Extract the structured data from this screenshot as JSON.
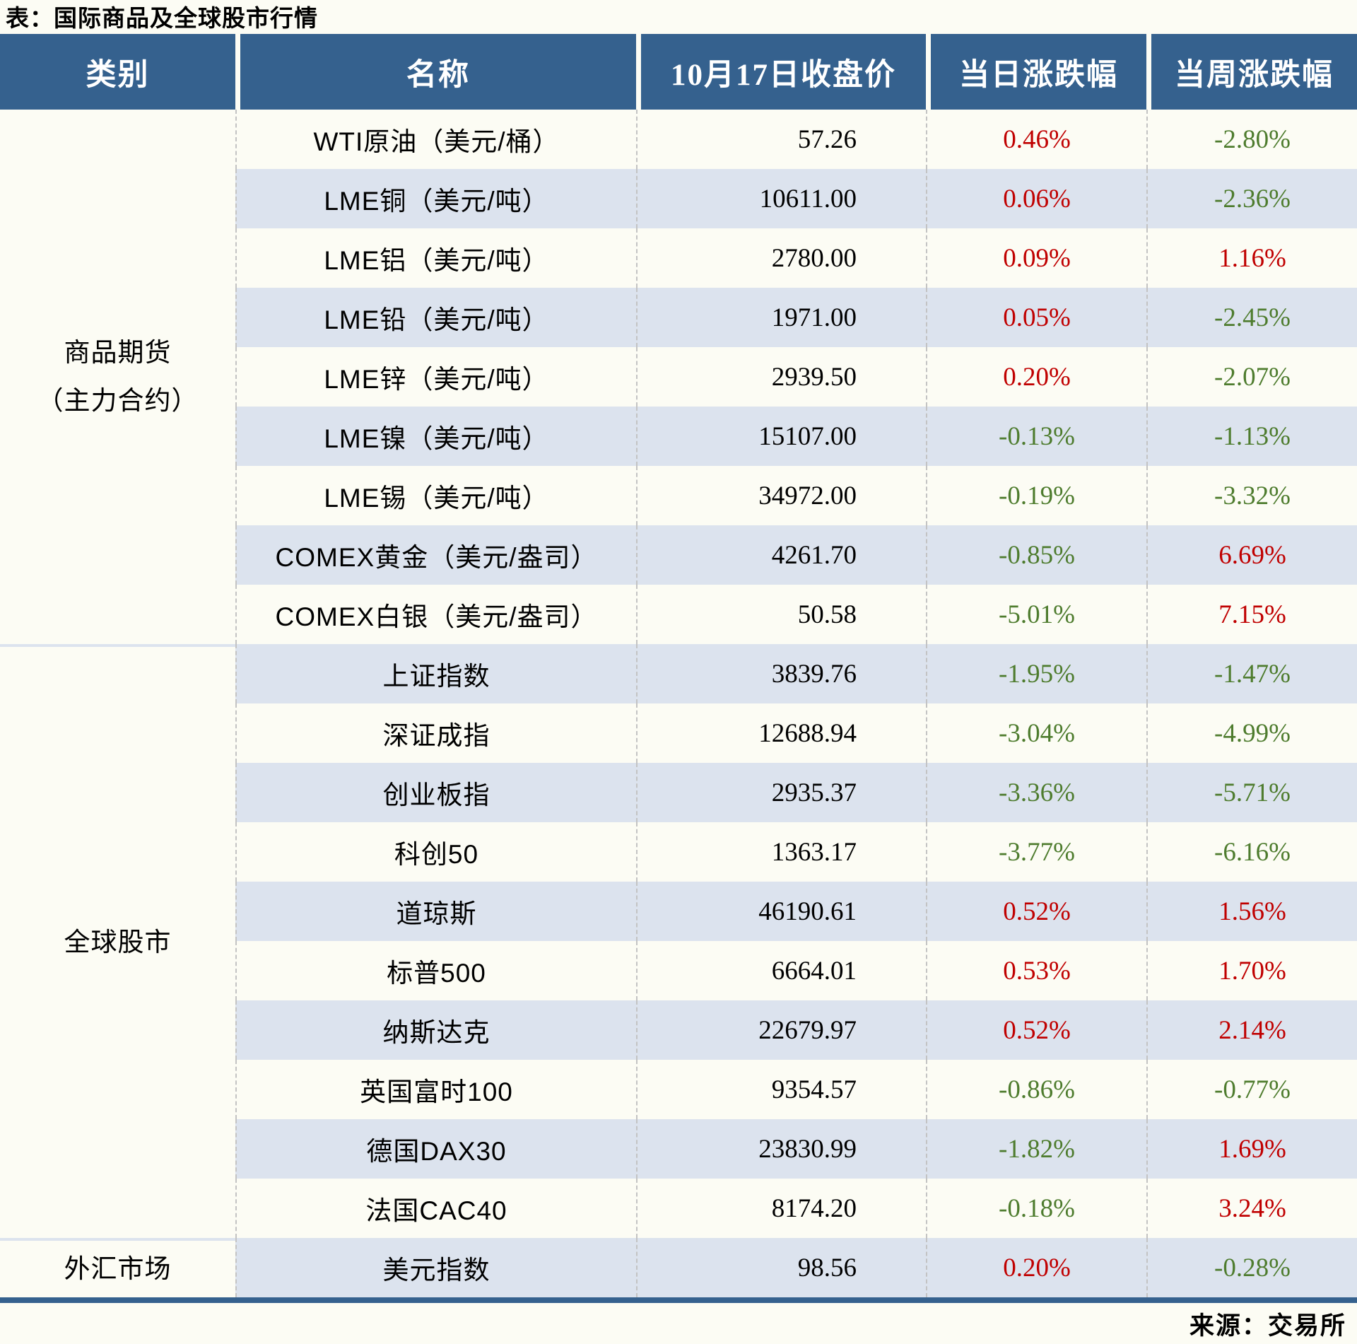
{
  "chart_data": {
    "type": "table",
    "title": "表：国际商品及全球股市行情",
    "source": "来源：交易所",
    "columns": [
      "类别",
      "名称",
      "10月17日收盘价",
      "当日涨跌幅",
      "当周涨跌幅"
    ],
    "colors": {
      "header_bg": "#35618E",
      "row_alt": "#DCE3EE",
      "table_bg": "#FCFCF4",
      "positive": "#C00000",
      "negative": "#4E7C2E"
    },
    "sections": [
      {
        "category": "商品期货\n（主力合约）",
        "rows": [
          {
            "name": "WTI原油（美元/桶）",
            "close": "57.26",
            "day": "0.46%",
            "week": "-2.80%"
          },
          {
            "name": "LME铜（美元/吨）",
            "close": "10611.00",
            "day": "0.06%",
            "week": "-2.36%"
          },
          {
            "name": "LME铝（美元/吨）",
            "close": "2780.00",
            "day": "0.09%",
            "week": "1.16%"
          },
          {
            "name": "LME铅（美元/吨）",
            "close": "1971.00",
            "day": "0.05%",
            "week": "-2.45%"
          },
          {
            "name": "LME锌（美元/吨）",
            "close": "2939.50",
            "day": "0.20%",
            "week": "-2.07%"
          },
          {
            "name": "LME镍（美元/吨）",
            "close": "15107.00",
            "day": "-0.13%",
            "week": "-1.13%"
          },
          {
            "name": "LME锡（美元/吨）",
            "close": "34972.00",
            "day": "-0.19%",
            "week": "-3.32%"
          },
          {
            "name": "COMEX黄金（美元/盎司）",
            "close": "4261.70",
            "day": "-0.85%",
            "week": "6.69%"
          },
          {
            "name": "COMEX白银（美元/盎司）",
            "close": "50.58",
            "day": "-5.01%",
            "week": "7.15%"
          }
        ]
      },
      {
        "category": "全球股市",
        "rows": [
          {
            "name": "上证指数",
            "close": "3839.76",
            "day": "-1.95%",
            "week": "-1.47%"
          },
          {
            "name": "深证成指",
            "close": "12688.94",
            "day": "-3.04%",
            "week": "-4.99%"
          },
          {
            "name": "创业板指",
            "close": "2935.37",
            "day": "-3.36%",
            "week": "-5.71%"
          },
          {
            "name": "科创50",
            "close": "1363.17",
            "day": "-3.77%",
            "week": "-6.16%"
          },
          {
            "name": "道琼斯",
            "close": "46190.61",
            "day": "0.52%",
            "week": "1.56%"
          },
          {
            "name": "标普500",
            "close": "6664.01",
            "day": "0.53%",
            "week": "1.70%"
          },
          {
            "name": "纳斯达克",
            "close": "22679.97",
            "day": "0.52%",
            "week": "2.14%"
          },
          {
            "name": "英国富时100",
            "close": "9354.57",
            "day": "-0.86%",
            "week": "-0.77%"
          },
          {
            "name": "德国DAX30",
            "close": "23830.99",
            "day": "-1.82%",
            "week": "1.69%"
          },
          {
            "name": "法国CAC40",
            "close": "8174.20",
            "day": "-0.18%",
            "week": "3.24%"
          }
        ]
      },
      {
        "category": "外汇市场",
        "rows": [
          {
            "name": "美元指数",
            "close": "98.56",
            "day": "0.20%",
            "week": "-0.28%"
          }
        ]
      }
    ]
  }
}
